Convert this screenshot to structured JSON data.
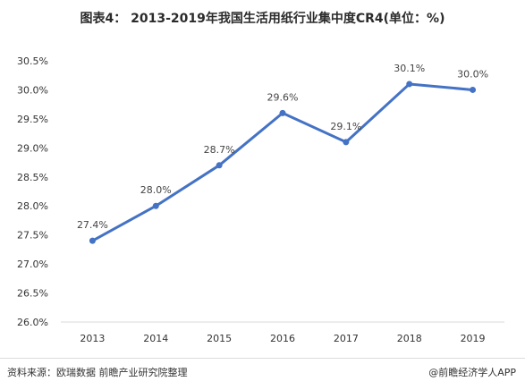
{
  "title": "图表4：  2013-2019年我国生活用纸行业集中度CR4(单位：%)",
  "source": "资料来源：欧瑞数据 前瞻产业研究院整理",
  "brand": "@前瞻经济学人APP",
  "colors": {
    "line": "#4472c4",
    "gridline": "#d9d9d9"
  },
  "chart_data": {
    "type": "line",
    "categories": [
      "2013",
      "2014",
      "2015",
      "2016",
      "2017",
      "2018",
      "2019"
    ],
    "series": [
      {
        "values": [
          27.4,
          28.0,
          28.7,
          29.6,
          29.1,
          30.1,
          30.0
        ]
      }
    ],
    "data_labels": [
      "27.4%",
      "28.0%",
      "28.7%",
      "29.6%",
      "29.1%",
      "30.1%",
      "30.0%"
    ],
    "ylim": [
      26.0,
      30.5
    ],
    "yticks": [
      26.0,
      26.5,
      27.0,
      27.5,
      28.0,
      28.5,
      29.0,
      29.5,
      30.0,
      30.5
    ],
    "ytick_labels": [
      "26.0%",
      "26.5%",
      "27.0%",
      "27.5%",
      "28.0%",
      "28.5%",
      "29.0%",
      "29.5%",
      "30.0%",
      "30.5%"
    ],
    "grid": false,
    "xlabel": "",
    "ylabel": ""
  }
}
